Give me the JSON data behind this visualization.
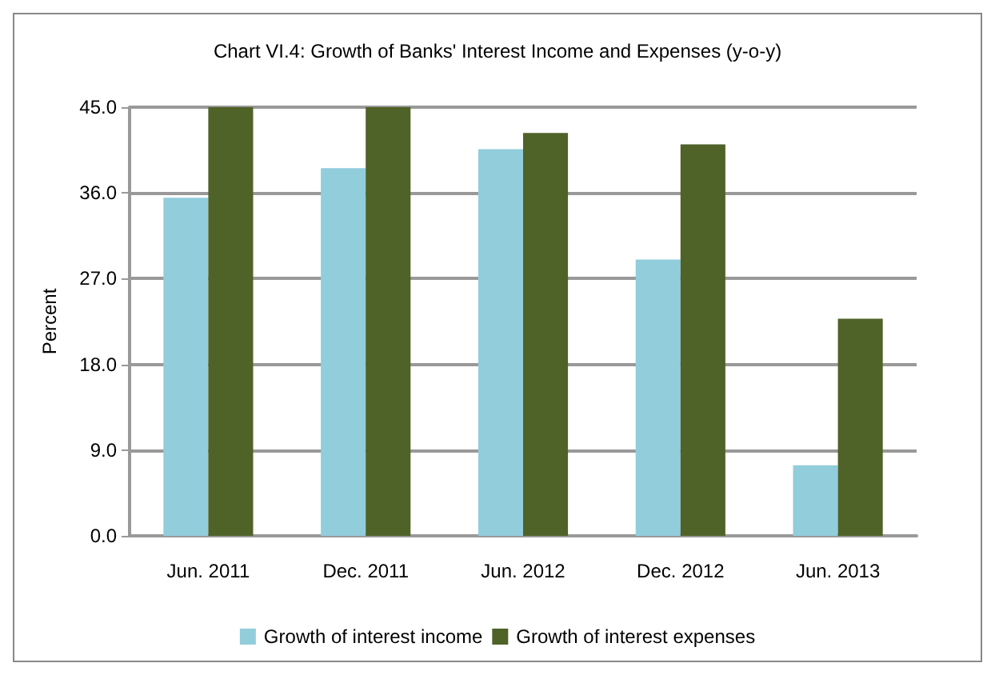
{
  "chart_data": {
    "type": "bar",
    "title": "Chart VI.4: Growth of Banks' Interest Income and Expenses (y-o-y)",
    "ylabel": "Percent",
    "categories": [
      "Jun. 2011",
      "Dec. 2011",
      "Jun. 2012",
      "Dec. 2012",
      "Jun. 2013"
    ],
    "series": [
      {
        "name": "Growth of interest income",
        "color": "#92cddc",
        "values": [
          35.5,
          38.6,
          40.6,
          29.0,
          7.4
        ]
      },
      {
        "name": "Growth of interest expenses",
        "color": "#4f6228",
        "values": [
          45.0,
          45.0,
          42.3,
          41.1,
          22.8
        ]
      }
    ],
    "ylim": [
      0,
      45
    ],
    "yticks": [
      {
        "value": 0,
        "label": "0.0"
      },
      {
        "value": 9,
        "label": "9.0"
      },
      {
        "value": 18,
        "label": "18.0"
      },
      {
        "value": 27,
        "label": "27.0"
      },
      {
        "value": 36,
        "label": "36.0"
      },
      {
        "value": 45,
        "label": "45.0"
      }
    ],
    "grid": "y",
    "legend": "bottom"
  }
}
